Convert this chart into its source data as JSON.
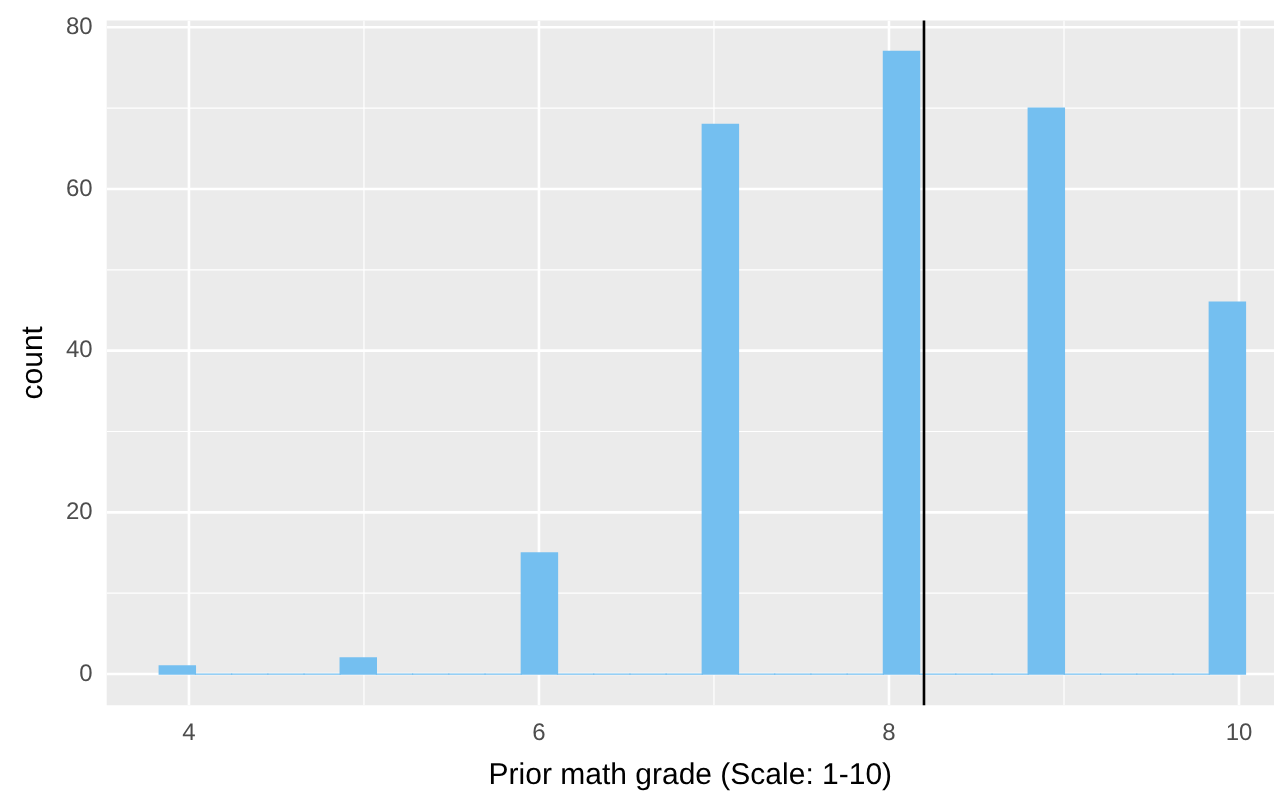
{
  "chart_data": {
    "type": "histogram",
    "xlabel": "Prior math grade (Scale: 1-10)",
    "ylabel": "count",
    "bins": [
      3.83,
      4.037,
      4.244,
      4.451,
      4.658,
      4.864,
      5.071,
      5.278,
      5.485,
      5.692,
      5.899,
      6.106,
      6.313,
      6.52,
      6.727,
      6.933,
      7.14,
      7.347,
      7.554,
      7.761,
      7.968,
      8.175,
      8.382,
      8.589,
      8.796,
      9.002,
      9.209,
      9.416,
      9.623,
      9.83,
      10.037
    ],
    "values": [
      1,
      0,
      0,
      0,
      0,
      2,
      0,
      0,
      0,
      0,
      15,
      0,
      0,
      0,
      0,
      68,
      0,
      0,
      0,
      0,
      77,
      0,
      0,
      0,
      70,
      0,
      0,
      0,
      0,
      46
    ],
    "color": "#74bff0",
    "xlim": [
      3.53,
      10.2
    ],
    "ylim": [
      -3.85,
      80.85
    ],
    "xticks": [
      4,
      6,
      8,
      10
    ],
    "yticks": [
      0,
      20,
      40,
      60,
      80
    ],
    "grid": true,
    "legend": false,
    "ref_lines": [
      {
        "axis": "x",
        "value": 8.2,
        "color": "#000000"
      }
    ]
  }
}
